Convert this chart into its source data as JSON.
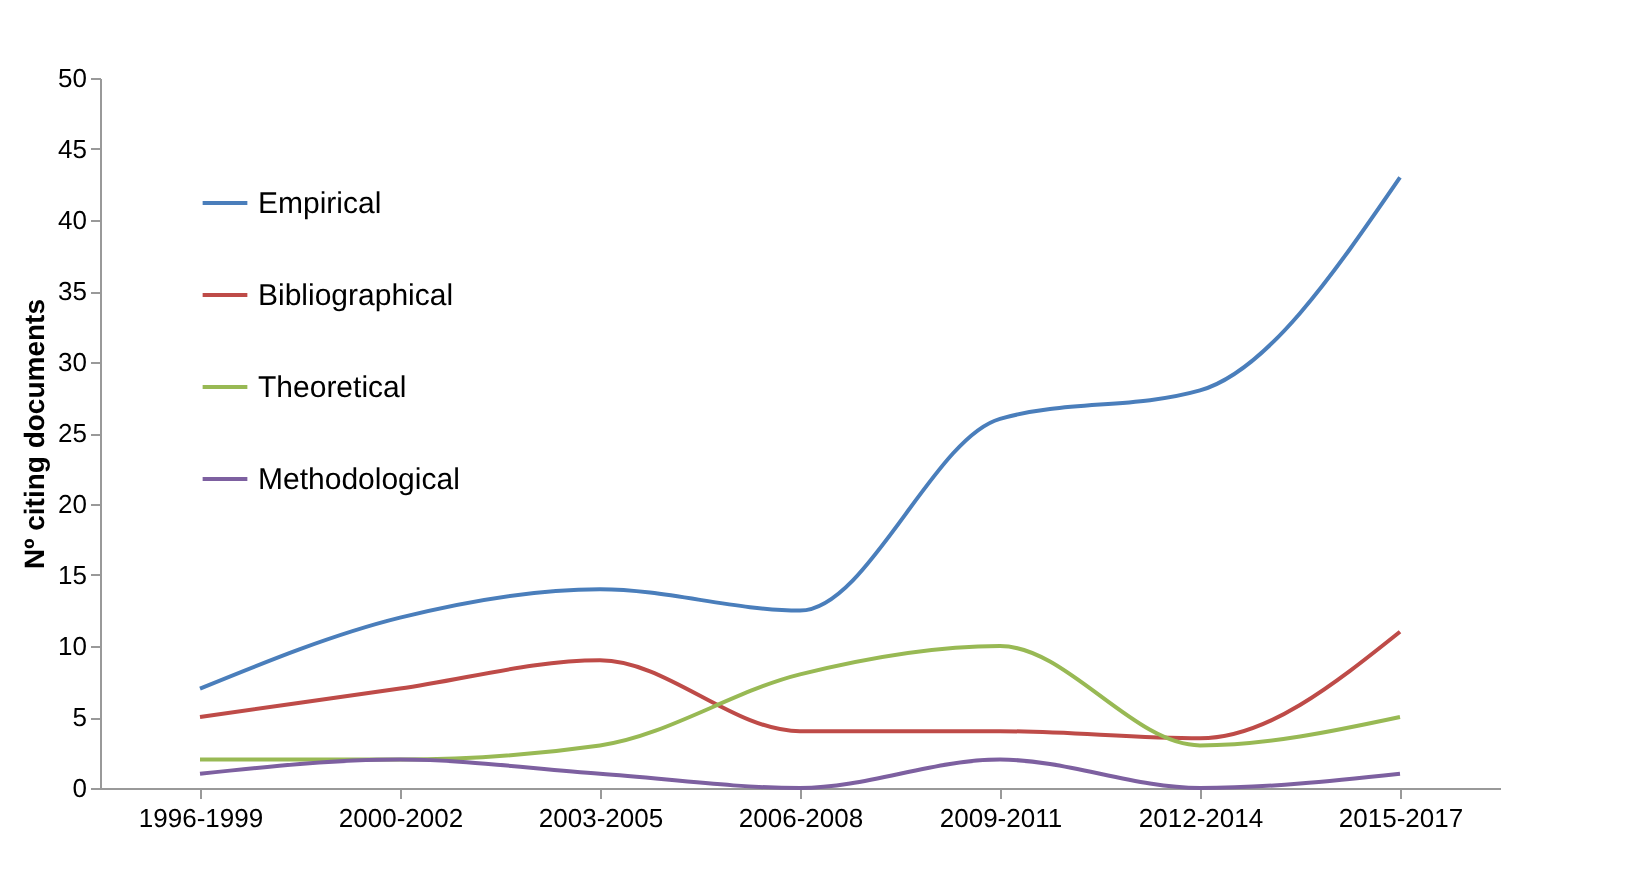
{
  "chart_data": {
    "type": "line",
    "ylabel": "Nº citing documents",
    "categories": [
      "1996-1999",
      "2000-2002",
      "2003-2005",
      "2006-2008",
      "2009-2011",
      "2012-2014",
      "2015-2017"
    ],
    "series": [
      {
        "name": "Empirical",
        "color": "#4a7ebb",
        "values": [
          7,
          12,
          14,
          12.5,
          26,
          28,
          43
        ]
      },
      {
        "name": "Bibliographical",
        "color": "#be4b48",
        "values": [
          5,
          7,
          9,
          4,
          4,
          3.5,
          11
        ]
      },
      {
        "name": "Theoretical",
        "color": "#98b954",
        "values": [
          2,
          2,
          3,
          8,
          10,
          3,
          5
        ]
      },
      {
        "name": "Methodological",
        "color": "#7d60a0",
        "values": [
          1,
          2,
          1,
          0,
          2,
          0,
          1
        ]
      }
    ],
    "ylim": [
      0,
      50
    ],
    "yticks": [
      0,
      5,
      10,
      15,
      20,
      25,
      30,
      35,
      40,
      45,
      50
    ],
    "grid": false,
    "legend": "top left",
    "marker": "none",
    "line_style": "solid"
  }
}
